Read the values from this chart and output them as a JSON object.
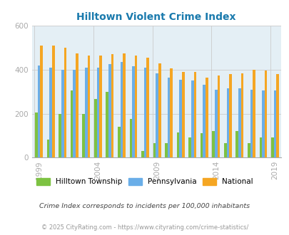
{
  "title": "Hilltown Violent Crime Index",
  "years": [
    1999,
    2000,
    2001,
    2002,
    2003,
    2004,
    2005,
    2006,
    2007,
    2008,
    2009,
    2010,
    2011,
    2012,
    2013,
    2014,
    2015,
    2016,
    2017,
    2018,
    2019
  ],
  "hilltown": [
    205,
    80,
    200,
    305,
    200,
    265,
    300,
    140,
    175,
    30,
    65,
    65,
    115,
    90,
    110,
    120,
    65,
    120,
    65,
    90,
    90
  ],
  "pennsylvania": [
    420,
    410,
    400,
    400,
    410,
    410,
    425,
    435,
    415,
    410,
    385,
    365,
    355,
    350,
    330,
    310,
    315,
    315,
    310,
    305,
    305
  ],
  "national": [
    510,
    510,
    500,
    475,
    465,
    465,
    470,
    475,
    465,
    455,
    430,
    405,
    390,
    390,
    365,
    375,
    380,
    385,
    400,
    395,
    380
  ],
  "hilltown_color": "#7dc242",
  "pennsylvania_color": "#6aaee8",
  "national_color": "#f5a623",
  "plot_bg": "#e4eff5",
  "ylim": [
    0,
    600
  ],
  "yticks": [
    0,
    200,
    400,
    600
  ],
  "xtick_years": [
    1999,
    2004,
    2009,
    2014,
    2019
  ],
  "legend_labels": [
    "Hilltown Township",
    "Pennsylvania",
    "National"
  ],
  "footnote1": "Crime Index corresponds to incidents per 100,000 inhabitants",
  "footnote2": "© 2025 CityRating.com - https://www.cityrating.com/crime-statistics/",
  "bar_width": 0.22,
  "title_color": "#1a7aad",
  "footnote1_color": "#444444",
  "footnote2_color": "#999999",
  "grid_color": "#cccccc",
  "tick_color": "#aaaaaa",
  "spine_color": "#aaaaaa"
}
